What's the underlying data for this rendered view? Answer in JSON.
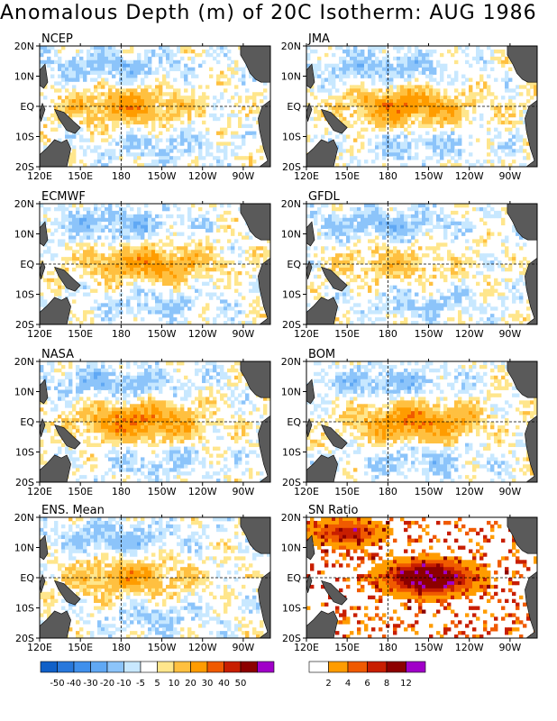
{
  "title": "Anomalous Depth (m) of 20C Isotherm: AUG 1986",
  "chart_data": [
    {
      "type": "heatmap",
      "title": "NCEP",
      "xticks": [
        "120E",
        "150E",
        "180",
        "150W",
        "120W",
        "90W"
      ],
      "yticks": [
        "20N",
        "10N",
        "EQ",
        "10S",
        "20S"
      ]
    },
    {
      "type": "heatmap",
      "title": "JMA",
      "xticks": [
        "120E",
        "150E",
        "180",
        "150W",
        "120W",
        "90W"
      ],
      "yticks": [
        "20N",
        "10N",
        "EQ",
        "10S",
        "20S"
      ]
    },
    {
      "type": "heatmap",
      "title": "ECMWF",
      "xticks": [
        "120E",
        "150E",
        "180",
        "150W",
        "120W",
        "90W"
      ],
      "yticks": [
        "20N",
        "10N",
        "EQ",
        "10S",
        "20S"
      ]
    },
    {
      "type": "heatmap",
      "title": "GFDL",
      "xticks": [
        "120E",
        "150E",
        "180",
        "150W",
        "120W",
        "90W"
      ],
      "yticks": [
        "20N",
        "10N",
        "EQ",
        "10S",
        "20S"
      ]
    },
    {
      "type": "heatmap",
      "title": "NASA",
      "xticks": [
        "120E",
        "150E",
        "180",
        "150W",
        "120W",
        "90W"
      ],
      "yticks": [
        "20N",
        "10N",
        "EQ",
        "10S",
        "20S"
      ]
    },
    {
      "type": "heatmap",
      "title": "BOM",
      "xticks": [
        "120E",
        "150E",
        "180",
        "150W",
        "120W",
        "90W"
      ],
      "yticks": [
        "20N",
        "10N",
        "EQ",
        "10S",
        "20S"
      ]
    },
    {
      "type": "heatmap",
      "title": "ENS. Mean",
      "xticks": [
        "120E",
        "150E",
        "180",
        "150W",
        "120W",
        "90W"
      ],
      "yticks": [
        "20N",
        "10N",
        "EQ",
        "10S",
        "20S"
      ]
    },
    {
      "type": "heatmap",
      "title": "SN Ratio",
      "xticks": [
        "120E",
        "150E",
        "180",
        "150W",
        "120W",
        "90W"
      ],
      "yticks": [
        "20N",
        "10N",
        "EQ",
        "10S",
        "20S"
      ]
    }
  ],
  "legend_anomaly": {
    "labels": [
      "-50",
      "-40",
      "-30",
      "-20",
      "-10",
      "-5",
      "5",
      "10",
      "20",
      "30",
      "40",
      "50"
    ],
    "colors": [
      "#1060c8",
      "#2878dc",
      "#4090ec",
      "#60a8f4",
      "#8cc4fa",
      "#c8e8ff",
      "#ffffff",
      "#ffe68c",
      "#ffc040",
      "#ff9c00",
      "#f05a00",
      "#c81e00",
      "#8c0000",
      "#a000c8"
    ]
  },
  "legend_ratio": {
    "labels": [
      "2",
      "4",
      "6",
      "8",
      "12"
    ],
    "colors": [
      "#ffffff",
      "#ff9c00",
      "#f05a00",
      "#c81e00",
      "#8c0000",
      "#a000c8"
    ]
  }
}
